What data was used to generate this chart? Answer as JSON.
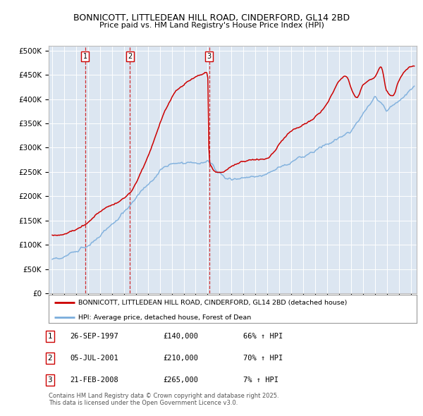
{
  "title1": "BONNICOTT, LITTLEDEAN HILL ROAD, CINDERFORD, GL14 2BD",
  "title2": "Price paid vs. HM Land Registry's House Price Index (HPI)",
  "ylabel_ticks": [
    "£0",
    "£50K",
    "£100K",
    "£150K",
    "£200K",
    "£250K",
    "£300K",
    "£350K",
    "£400K",
    "£450K",
    "£500K"
  ],
  "ytick_values": [
    0,
    50000,
    100000,
    150000,
    200000,
    250000,
    300000,
    350000,
    400000,
    450000,
    500000
  ],
  "xlim_start": 1994.7,
  "xlim_end": 2025.5,
  "ylim": [
    0,
    510000
  ],
  "sale_dates": [
    1997.74,
    2001.51,
    2008.14
  ],
  "sale_labels": [
    "1",
    "2",
    "3"
  ],
  "legend_line1": "BONNICOTT, LITTLEDEAN HILL ROAD, CINDERFORD, GL14 2BD (detached house)",
  "legend_line2": "HPI: Average price, detached house, Forest of Dean",
  "table_data": [
    [
      "1",
      "26-SEP-1997",
      "£140,000",
      "66% ↑ HPI"
    ],
    [
      "2",
      "05-JUL-2001",
      "£210,000",
      "70% ↑ HPI"
    ],
    [
      "3",
      "21-FEB-2008",
      "£265,000",
      "7% ↑ HPI"
    ]
  ],
  "footer": "Contains HM Land Registry data © Crown copyright and database right 2025.\nThis data is licensed under the Open Government Licence v3.0.",
  "red_color": "#cc0000",
  "blue_color": "#7aaddc",
  "plot_bg": "#dce6f1",
  "grid_color": "#ffffff"
}
